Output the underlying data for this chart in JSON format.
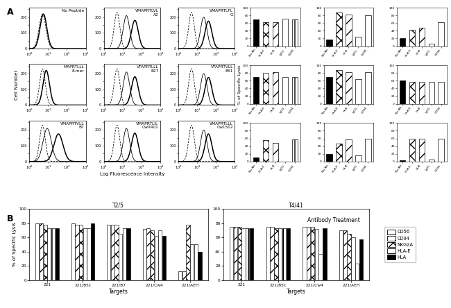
{
  "flow_panels": [
    {
      "title": "No Peptide",
      "subtitle": "",
      "curve_type": "no_peptide"
    },
    {
      "title": "VMAPRTLVL",
      "subtitle": "A2",
      "curve_type": "two_curves"
    },
    {
      "title": "VMAPRTLFL",
      "subtitle": "G",
      "curve_type": "two_curves_close"
    },
    {
      "title": "MAPRTLLL",
      "subtitle": "8-mer",
      "curve_type": "one_solid"
    },
    {
      "title": "VTAPRTLLL",
      "subtitle": "B27",
      "curve_type": "two_curves"
    },
    {
      "title": "VTAPRTVLL",
      "subtitle": "B51",
      "curve_type": "two_curves_close"
    },
    {
      "title": "VMAPRTVLL",
      "subtitle": "B7",
      "curve_type": "two_wide"
    },
    {
      "title": "VMAPRTLIL",
      "subtitle": "Cw0401",
      "curve_type": "two_curves"
    },
    {
      "title": "VMAPRTLLL",
      "subtitle": "Cw1502",
      "curve_type": "two_curves_close"
    }
  ],
  "bar_panels": [
    [
      {
        "values": [
          70,
          62,
          63,
          72,
          70
        ]
      },
      {
        "values": [
          18,
          88,
          83,
          25,
          80
        ]
      },
      {
        "values": [
          20,
          42,
          47,
          7,
          62
        ]
      }
    ],
    [
      {
        "values": [
          70,
          80,
          83,
          70,
          70
        ]
      },
      {
        "values": [
          70,
          87,
          82,
          65,
          82
        ]
      },
      {
        "values": [
          60,
          57,
          57,
          57,
          57
        ]
      }
    ],
    [
      {
        "values": [
          10,
          55,
          48,
          0,
          57
        ]
      },
      {
        "values": [
          20,
          47,
          57,
          15,
          60
        ]
      },
      {
        "values": [
          3,
          60,
          60,
          5,
          60
        ]
      }
    ]
  ],
  "bar_categories": [
    "No Ab",
    "HLA-E",
    "HLA",
    "IgG1",
    "CD94"
  ],
  "t25_title": "T2/5",
  "t25_cats": [
    "221",
    "221/B51",
    "221/B7",
    "221/Cw4",
    "221/AEH"
  ],
  "t25_data": [
    [
      80,
      80,
      78,
      72,
      13
    ],
    [
      80,
      78,
      78,
      73,
      13
    ],
    [
      78,
      78,
      78,
      70,
      78
    ],
    [
      73,
      73,
      65,
      62,
      50
    ],
    [
      73,
      73,
      73,
      70,
      50
    ],
    [
      73,
      80,
      73,
      62,
      40
    ]
  ],
  "t441_title": "T4/41",
  "t441_cats": [
    "221",
    "221/B51",
    "221/Cw4",
    "221/AEH"
  ],
  "t441_data": [
    [
      75,
      75,
      75,
      70
    ],
    [
      75,
      75,
      75,
      70
    ],
    [
      75,
      73,
      75,
      65
    ],
    [
      73,
      73,
      72,
      60
    ],
    [
      73,
      73,
      37,
      23
    ],
    [
      73,
      73,
      73,
      57
    ]
  ],
  "legend_labels": [
    "CD56",
    "CD94",
    "NKG2A",
    "HLA-E",
    "HLA"
  ]
}
